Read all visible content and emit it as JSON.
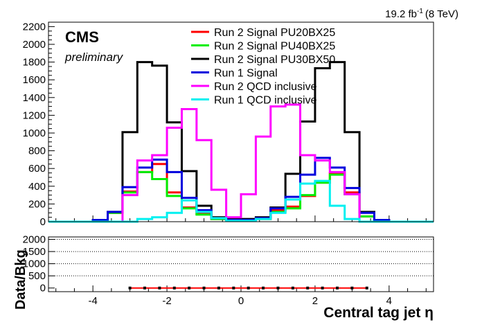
{
  "header": {
    "lumi_value": "19.2 fb",
    "lumi_exp": "-1",
    "lumi_energy": "(8 TeV)"
  },
  "labels": {
    "cms": "CMS",
    "preliminary": "preliminary"
  },
  "chart_data": [
    {
      "type": "histogram",
      "panel": "main",
      "bin_edges": [
        -5.2,
        -4.8,
        -4.4,
        -4.0,
        -3.6,
        -3.2,
        -2.8,
        -2.4,
        -2.0,
        -1.6,
        -1.2,
        -0.8,
        -0.4,
        0.0,
        0.4,
        0.8,
        1.2,
        1.6,
        2.0,
        2.4,
        2.8,
        3.2,
        3.6,
        4.0,
        4.4,
        4.8,
        5.2
      ],
      "xlim": [
        -5.2,
        5.2
      ],
      "ylim": [
        0,
        2250
      ],
      "yticks": [
        0,
        200,
        400,
        600,
        800,
        1000,
        1200,
        1400,
        1600,
        1800,
        2000,
        2200
      ],
      "xticks": [
        -4,
        -2,
        0,
        2,
        4
      ],
      "xlabel": "Central tag jet  η",
      "ylabel": "",
      "legend_position": "top-center",
      "series": [
        {
          "name": "Run 2 Signal PU20BX25",
          "color": "#ff0000",
          "values": [
            0,
            0,
            0,
            10,
            100,
            340,
            560,
            650,
            330,
            160,
            90,
            30,
            20,
            20,
            30,
            130,
            170,
            290,
            440,
            550,
            330,
            60,
            10,
            0,
            0,
            0
          ]
        },
        {
          "name": "Run 2 Signal PU40BX25",
          "color": "#00ee00",
          "values": [
            0,
            0,
            0,
            10,
            100,
            330,
            560,
            480,
            290,
            150,
            80,
            30,
            20,
            20,
            30,
            110,
            150,
            300,
            440,
            530,
            310,
            60,
            10,
            0,
            0,
            0
          ]
        },
        {
          "name": "Run 2 Signal PU30BX50",
          "color": "#000000",
          "values": [
            0,
            0,
            0,
            20,
            110,
            1010,
            1800,
            1760,
            1120,
            570,
            180,
            50,
            30,
            30,
            50,
            160,
            540,
            1130,
            1730,
            1800,
            1010,
            110,
            20,
            0,
            0,
            0
          ]
        },
        {
          "name": "Run 1 Signal",
          "color": "#0000dd",
          "values": [
            0,
            0,
            0,
            20,
            110,
            390,
            610,
            700,
            560,
            270,
            130,
            40,
            20,
            20,
            40,
            150,
            280,
            530,
            720,
            610,
            380,
            100,
            20,
            0,
            0,
            0
          ]
        },
        {
          "name": "Run 2 QCD inclusive",
          "color": "#ff00ff",
          "values": [
            0,
            0,
            0,
            0,
            0,
            300,
            690,
            750,
            1060,
            1270,
            920,
            360,
            50,
            310,
            960,
            1300,
            1320,
            750,
            690,
            560,
            310,
            0,
            0,
            0,
            0,
            0
          ]
        },
        {
          "name": "Run 1 QCD inclusive",
          "color": "#00f0f0",
          "values": [
            0,
            0,
            0,
            0,
            0,
            0,
            30,
            50,
            100,
            240,
            110,
            40,
            10,
            10,
            30,
            100,
            250,
            430,
            460,
            180,
            30,
            0,
            0,
            0,
            0,
            0
          ]
        }
      ]
    },
    {
      "type": "scatter",
      "panel": "ratio",
      "ylabel": "Data/Bkg",
      "xlim": [
        -5.2,
        5.2
      ],
      "ylim": [
        -150,
        2100
      ],
      "yticks": [
        0,
        500,
        1000,
        1500,
        2000
      ],
      "xticks": [
        -4,
        -2,
        0,
        2,
        4
      ],
      "grid": "horizontal dotted",
      "line_color": "#ff0000",
      "x": [
        -3.0,
        -2.6,
        -2.2,
        -1.8,
        -1.4,
        -1.0,
        -0.6,
        -0.2,
        0.2,
        0.6,
        1.0,
        1.4,
        1.8,
        2.2,
        2.6,
        3.0,
        3.4
      ],
      "y": [
        0,
        0,
        0,
        0,
        0,
        0,
        0,
        0,
        0,
        0,
        0,
        0,
        0,
        0,
        0,
        0,
        0
      ]
    }
  ]
}
